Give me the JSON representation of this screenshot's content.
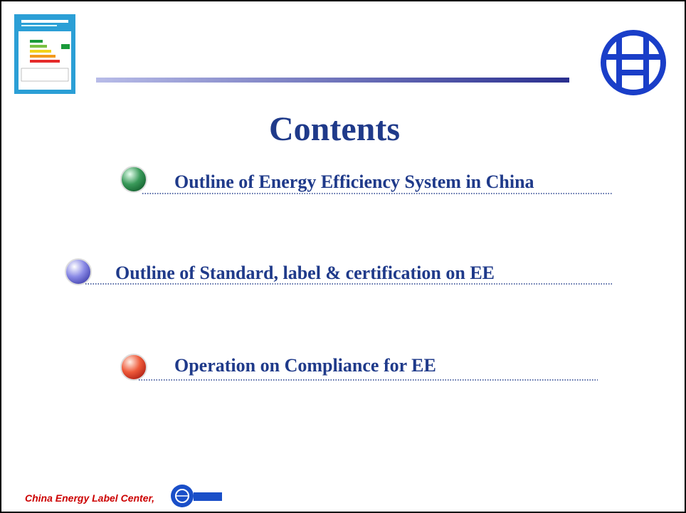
{
  "title": "Contents",
  "items": [
    "Outline of Energy Efficiency System in China",
    "Outline of Standard, label & certification on EE",
    "Operation on Compliance for EE"
  ],
  "footer": "China Energy Label Center,"
}
